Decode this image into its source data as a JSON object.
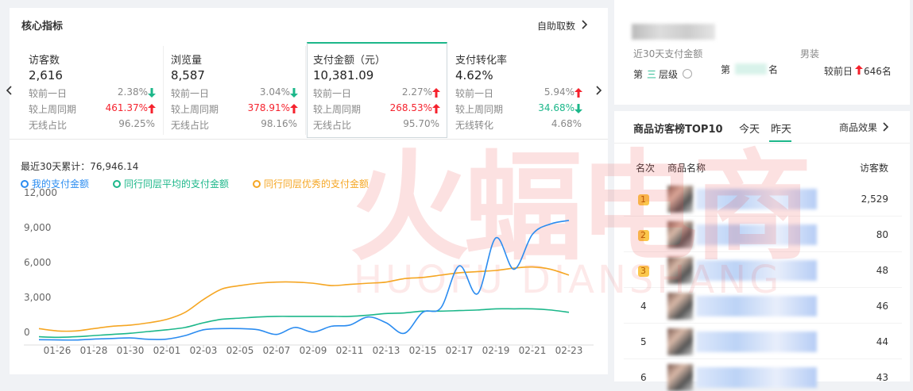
{
  "header": {
    "title": "核心指标",
    "link": "自助取数"
  },
  "metrics": [
    {
      "title": "访客数",
      "value": "2,616",
      "rows": [
        {
          "label": "较前一日",
          "value": "2.38%",
          "dir": "down"
        },
        {
          "label": "较上周同期",
          "value": "461.37%",
          "dir": "up"
        },
        {
          "label": "无线占比",
          "value": "96.25%"
        }
      ]
    },
    {
      "title": "浏览量",
      "value": "8,587",
      "rows": [
        {
          "label": "较前一日",
          "value": "3.04%",
          "dir": "down"
        },
        {
          "label": "较上周同期",
          "value": "378.91%",
          "dir": "up"
        },
        {
          "label": "无线占比",
          "value": "98.16%"
        }
      ]
    },
    {
      "title": "支付金额（元）",
      "value": "10,381.09",
      "selected": true,
      "rows": [
        {
          "label": "较前一日",
          "value": "2.27%",
          "dir": "up"
        },
        {
          "label": "较上周同期",
          "value": "268.53%",
          "dir": "up"
        },
        {
          "label": "无线占比",
          "value": "95.70%"
        }
      ]
    },
    {
      "title": "支付转化率",
      "value": "4.62%",
      "rows": [
        {
          "label": "较前一日",
          "value": "5.94%",
          "dir": "up"
        },
        {
          "label": "较上周同期",
          "value": "34.68%",
          "dir": "down"
        },
        {
          "label": "无线转化",
          "value": "4.68%"
        }
      ]
    }
  ],
  "chart_data": {
    "type": "line",
    "subtitle": "最近30天累计：76,946.14",
    "categories": [
      null,
      "01-26",
      null,
      "01-28",
      null,
      "01-30",
      null,
      "02-01",
      null,
      "02-03",
      null,
      "02-05",
      null,
      "02-07",
      null,
      "02-09",
      null,
      "02-11",
      null,
      "02-13",
      null,
      "02-15",
      null,
      "02-17",
      null,
      "02-19",
      null,
      "02-21",
      null,
      "02-23"
    ],
    "series": [
      {
        "name": "我的支付金额",
        "color": "#2b8cf0",
        "values": [
          50,
          30,
          20,
          100,
          150,
          200,
          80,
          100,
          400,
          900,
          1000,
          1000,
          900,
          500,
          1100,
          700,
          1200,
          1300,
          2000,
          1500,
          600,
          2400,
          2800,
          6400,
          4000,
          8800,
          6100,
          9100,
          10000,
          10300
        ]
      },
      {
        "name": "同行同层平均的支付金额",
        "color": "#1cb78a",
        "values": [
          300,
          250,
          300,
          400,
          500,
          600,
          750,
          900,
          1100,
          1500,
          1800,
          1900,
          2000,
          2050,
          2050,
          2050,
          2050,
          2050,
          2150,
          2300,
          2350,
          2500,
          2500,
          2550,
          2600,
          2700,
          2700,
          2700,
          2600,
          2400
        ]
      },
      {
        "name": "同行同层优秀的支付金额",
        "color": "#f5a623",
        "values": [
          1000,
          800,
          800,
          1000,
          1200,
          1300,
          1500,
          1800,
          2400,
          3500,
          4400,
          4700,
          4900,
          5000,
          5000,
          4900,
          4700,
          4800,
          4900,
          5000,
          5300,
          5400,
          5600,
          5800,
          5900,
          6000,
          6200,
          6300,
          6100,
          5600
        ]
      }
    ],
    "ylim": [
      0,
      12000
    ],
    "yticks": [
      0,
      {
        "value": 3000,
        "label": "3,000"
      },
      {
        "value": 6000,
        "label": "6,000"
      },
      {
        "value": 9000,
        "label": "9,000"
      },
      {
        "value": 12000,
        "label": "12,000"
      }
    ]
  },
  "rank_card": {
    "period": "近30天支付金额",
    "category": "男装",
    "tier_prefix": "第",
    "tier": "三",
    "tier_suffix": "层级",
    "rank_prefix": "第",
    "rank_suffix": "名",
    "compare": "较前日",
    "change": "646名",
    "change_dir": "up"
  },
  "top_list": {
    "title": "商品访客榜TOP10",
    "tabs": [
      "今天",
      "昨天"
    ],
    "active_tab": 1,
    "link": "商品效果",
    "columns": [
      "名次",
      "商品名称",
      "访客数"
    ],
    "rows": [
      {
        "rank": "1",
        "visitors": "2,529"
      },
      {
        "rank": "2",
        "visitors": "80"
      },
      {
        "rank": "3",
        "visitors": "48"
      },
      {
        "rank": "4",
        "visitors": "46"
      },
      {
        "rank": "5",
        "visitors": "44"
      },
      {
        "rank": "6",
        "visitors": "43"
      }
    ]
  },
  "watermark": {
    "text": "火蝠电商",
    "latin": "HUOFU DIANSHANG"
  }
}
